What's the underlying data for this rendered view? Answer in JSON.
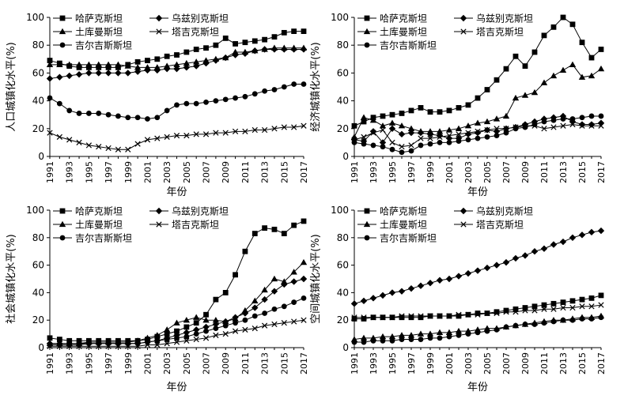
{
  "chart_data": [
    {
      "type": "line",
      "xlabel": "年份",
      "ylabel": "人口城镇化水平(%)",
      "ylim": [
        0,
        100
      ],
      "yticks": [
        0,
        20,
        40,
        60,
        80,
        100
      ],
      "xticks": [
        "1991",
        "1993",
        "1995",
        "1997",
        "1999",
        "2001",
        "2003",
        "2005",
        "2007",
        "2009",
        "2011",
        "2013",
        "2015",
        "2017"
      ],
      "x": [
        1991,
        1992,
        1993,
        1994,
        1995,
        1996,
        1997,
        1998,
        1999,
        2000,
        2001,
        2002,
        2003,
        2004,
        2005,
        2006,
        2007,
        2008,
        2009,
        2010,
        2011,
        2012,
        2013,
        2014,
        2015,
        2016,
        2017
      ],
      "legend_position": "top-left",
      "series": [
        {
          "name": "哈萨克斯坦",
          "marker": "square",
          "values": [
            69,
            67,
            65,
            64,
            64,
            64,
            64,
            64,
            66,
            68,
            69,
            70,
            72,
            73,
            75,
            77,
            78,
            80,
            85,
            81,
            82,
            83,
            84,
            86,
            89,
            90,
            90
          ]
        },
        {
          "name": "乌兹别克斯坦",
          "marker": "diamond",
          "values": [
            56,
            57,
            58,
            59,
            60,
            60,
            60,
            60,
            60,
            61,
            62,
            62,
            63,
            63,
            64,
            65,
            67,
            69,
            71,
            73,
            74,
            76,
            77,
            77,
            77,
            77,
            77
          ]
        },
        {
          "name": "土库曼斯坦",
          "marker": "triangle",
          "values": [
            66,
            66,
            66,
            66,
            66,
            66,
            66,
            66,
            65,
            64,
            64,
            64,
            65,
            66,
            67,
            68,
            69,
            70,
            71,
            75,
            75,
            76,
            77,
            78,
            78,
            78,
            78
          ]
        },
        {
          "name": "塔吉克斯坦",
          "marker": "x",
          "values": [
            17,
            14,
            12,
            10,
            8,
            7,
            6,
            5,
            5,
            9,
            12,
            13,
            14,
            15,
            15,
            16,
            16,
            17,
            17,
            18,
            18,
            19,
            19,
            20,
            21,
            21,
            22
          ]
        },
        {
          "name": "吉尔吉斯斯坦",
          "marker": "circle",
          "values": [
            42,
            38,
            33,
            31,
            31,
            31,
            30,
            29,
            28,
            28,
            27,
            28,
            33,
            37,
            38,
            38,
            39,
            40,
            41,
            42,
            43,
            45,
            47,
            48,
            50,
            52,
            52
          ]
        }
      ]
    },
    {
      "type": "line",
      "xlabel": "年份",
      "ylabel": "经济城镇化水平(%)",
      "ylim": [
        0,
        100
      ],
      "yticks": [
        0,
        20,
        40,
        60,
        80,
        100
      ],
      "xticks": [
        "1991",
        "1993",
        "1995",
        "1997",
        "1999",
        "2001",
        "2003",
        "2005",
        "2007",
        "2009",
        "2011",
        "2013",
        "2015",
        "2017"
      ],
      "x": [
        1991,
        1992,
        1993,
        1994,
        1995,
        1996,
        1997,
        1998,
        1999,
        2000,
        2001,
        2002,
        2003,
        2004,
        2005,
        2006,
        2007,
        2008,
        2009,
        2010,
        2011,
        2012,
        2013,
        2014,
        2015,
        2016,
        2017
      ],
      "legend_position": "top-left",
      "series": [
        {
          "name": "哈萨克斯坦",
          "marker": "square",
          "values": [
            22,
            25,
            28,
            29,
            30,
            31,
            33,
            35,
            32,
            32,
            33,
            35,
            37,
            42,
            48,
            55,
            63,
            72,
            65,
            75,
            87,
            93,
            100,
            95,
            82,
            71,
            77
          ]
        },
        {
          "name": "乌兹别克斯坦",
          "marker": "diamond",
          "values": [
            12,
            11,
            18,
            10,
            20,
            16,
            17,
            17,
            16,
            15,
            13,
            13,
            16,
            17,
            19,
            18,
            20,
            21,
            23,
            25,
            27,
            28,
            29,
            25,
            23,
            23,
            24
          ]
        },
        {
          "name": "土库曼斯坦",
          "marker": "triangle",
          "values": [
            14,
            28,
            26,
            22,
            24,
            22,
            20,
            18,
            18,
            18,
            19,
            20,
            22,
            24,
            25,
            27,
            29,
            42,
            44,
            46,
            53,
            58,
            62,
            66,
            57,
            58,
            63
          ]
        },
        {
          "name": "塔吉克斯坦",
          "marker": "x",
          "values": [
            12,
            14,
            17,
            19,
            10,
            7,
            8,
            13,
            13,
            14,
            15,
            16,
            17,
            18,
            19,
            20,
            20,
            21,
            22,
            22,
            20,
            21,
            22,
            23,
            22,
            22,
            22
          ]
        },
        {
          "name": "吉尔吉斯斯坦",
          "marker": "circle",
          "values": [
            10,
            9,
            8,
            7,
            5,
            3,
            4,
            8,
            9,
            10,
            10,
            11,
            12,
            13,
            14,
            15,
            17,
            20,
            21,
            23,
            25,
            26,
            27,
            27,
            28,
            29,
            29
          ]
        }
      ]
    },
    {
      "type": "line",
      "xlabel": "年份",
      "ylabel": "社会城镇化水平(%)",
      "ylim": [
        0,
        100
      ],
      "yticks": [
        0,
        20,
        40,
        60,
        80,
        100
      ],
      "xticks": [
        "1991",
        "1993",
        "1995",
        "1997",
        "1999",
        "2001",
        "2003",
        "2005",
        "2007",
        "2009",
        "2011",
        "2013",
        "2015",
        "2017"
      ],
      "x": [
        1991,
        1992,
        1993,
        1994,
        1995,
        1996,
        1997,
        1998,
        1999,
        2000,
        2001,
        2002,
        2003,
        2004,
        2005,
        2006,
        2007,
        2008,
        2009,
        2010,
        2011,
        2012,
        2013,
        2014,
        2015,
        2016,
        2017
      ],
      "legend_position": "top-left",
      "series": [
        {
          "name": "哈萨克斯坦",
          "marker": "square",
          "values": [
            7,
            6,
            5,
            5,
            5,
            5,
            5,
            5,
            5,
            5,
            6,
            8,
            10,
            12,
            15,
            18,
            24,
            35,
            40,
            53,
            70,
            83,
            87,
            86,
            83,
            89,
            92
          ]
        },
        {
          "name": "乌兹别克斯坦",
          "marker": "diamond",
          "values": [
            3,
            3,
            3,
            3,
            3,
            3,
            3,
            3,
            3,
            3,
            4,
            5,
            7,
            9,
            11,
            13,
            15,
            17,
            19,
            22,
            25,
            29,
            35,
            41,
            46,
            48,
            50
          ]
        },
        {
          "name": "土库曼斯坦",
          "marker": "triangle",
          "values": [
            3,
            3,
            3,
            3,
            4,
            4,
            4,
            4,
            4,
            5,
            7,
            9,
            13,
            18,
            20,
            22,
            20,
            20,
            19,
            21,
            27,
            34,
            42,
            50,
            48,
            55,
            62
          ]
        },
        {
          "name": "塔吉克斯坦",
          "marker": "x",
          "values": [
            1,
            1,
            1,
            1,
            1,
            1,
            1,
            1,
            1,
            1,
            2,
            2,
            3,
            4,
            5,
            6,
            7,
            9,
            10,
            12,
            13,
            14,
            16,
            17,
            18,
            19,
            20
          ]
        },
        {
          "name": "吉尔吉斯斯坦",
          "marker": "circle",
          "values": [
            2,
            2,
            2,
            2,
            3,
            3,
            3,
            3,
            3,
            3,
            4,
            5,
            6,
            7,
            8,
            10,
            12,
            14,
            16,
            18,
            20,
            23,
            25,
            28,
            30,
            33,
            36
          ]
        }
      ]
    },
    {
      "type": "line",
      "xlabel": "年份",
      "ylabel": "空间城镇化水平(%)",
      "ylim": [
        0,
        100
      ],
      "yticks": [
        0,
        20,
        40,
        60,
        80,
        100
      ],
      "xticks": [
        "1991",
        "1993",
        "1995",
        "1997",
        "1999",
        "2001",
        "2003",
        "2005",
        "2007",
        "2009",
        "2011",
        "2013",
        "2015",
        "2017"
      ],
      "x": [
        1991,
        1992,
        1993,
        1994,
        1995,
        1996,
        1997,
        1998,
        1999,
        2000,
        2001,
        2002,
        2003,
        2004,
        2005,
        2006,
        2007,
        2008,
        2009,
        2010,
        2011,
        2012,
        2013,
        2014,
        2015,
        2016,
        2017
      ],
      "legend_position": "top-left",
      "series": [
        {
          "name": "哈萨克斯坦",
          "marker": "square",
          "values": [
            21,
            21,
            22,
            22,
            22,
            22,
            22,
            22,
            23,
            23,
            23,
            23,
            24,
            25,
            25,
            26,
            27,
            28,
            29,
            30,
            31,
            32,
            33,
            34,
            35,
            36,
            38
          ]
        },
        {
          "name": "乌兹别克斯坦",
          "marker": "diamond",
          "values": [
            32,
            34,
            36,
            38,
            40,
            41,
            43,
            45,
            47,
            49,
            50,
            52,
            54,
            56,
            58,
            60,
            62,
            65,
            67,
            70,
            72,
            75,
            77,
            80,
            82,
            84,
            85
          ]
        },
        {
          "name": "土库曼斯坦",
          "marker": "triangle",
          "values": [
            6,
            7,
            7,
            8,
            8,
            9,
            9,
            10,
            10,
            11,
            11,
            12,
            12,
            13,
            14,
            14,
            15,
            16,
            17,
            18,
            19,
            20,
            20,
            21,
            22,
            22,
            23
          ]
        },
        {
          "name": "塔吉克斯坦",
          "marker": "x",
          "values": [
            22,
            22,
            22,
            22,
            22,
            23,
            23,
            23,
            23,
            23,
            23,
            24,
            24,
            24,
            25,
            25,
            26,
            26,
            27,
            27,
            28,
            28,
            29,
            29,
            30,
            30,
            31
          ]
        },
        {
          "name": "吉尔吉斯斯坦",
          "marker": "circle",
          "values": [
            4,
            4,
            5,
            5,
            5,
            6,
            6,
            6,
            7,
            7,
            8,
            9,
            10,
            11,
            12,
            13,
            15,
            16,
            17,
            17,
            18,
            19,
            20,
            20,
            21,
            21,
            22
          ]
        }
      ]
    }
  ]
}
